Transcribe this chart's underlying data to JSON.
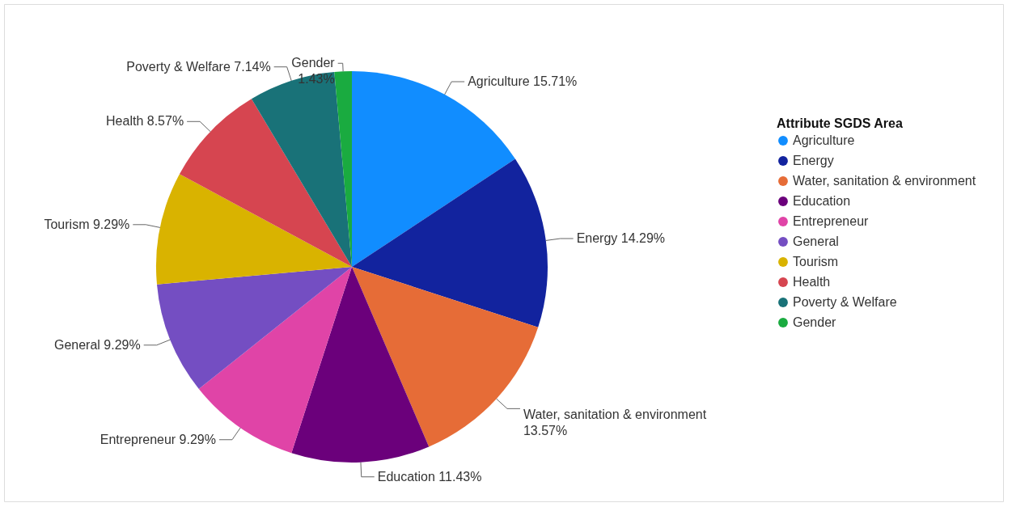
{
  "chart_data": {
    "type": "pie",
    "legend_title": "Attribute SGDS Area",
    "legend": "right",
    "categories": [
      "Agriculture",
      "Energy",
      "Water, sanitation & environment",
      "Education",
      "Entrepreneur",
      "General",
      "Tourism",
      "Health",
      "Poverty & Welfare",
      "Gender"
    ],
    "values": [
      15.71,
      14.29,
      13.57,
      11.43,
      9.29,
      9.29,
      9.29,
      8.57,
      7.14,
      1.43
    ],
    "value_labels": [
      "15.71%",
      "14.29%",
      "13.57%",
      "11.43%",
      "9.29%",
      "9.29%",
      "9.29%",
      "8.57%",
      "7.14%",
      "1.43%"
    ],
    "colors": [
      "#118dff",
      "#12239e",
      "#e66c37",
      "#6b007b",
      "#e044a7",
      "#744ec2",
      "#d9b300",
      "#d64550",
      "#197278",
      "#1aab40"
    ]
  }
}
